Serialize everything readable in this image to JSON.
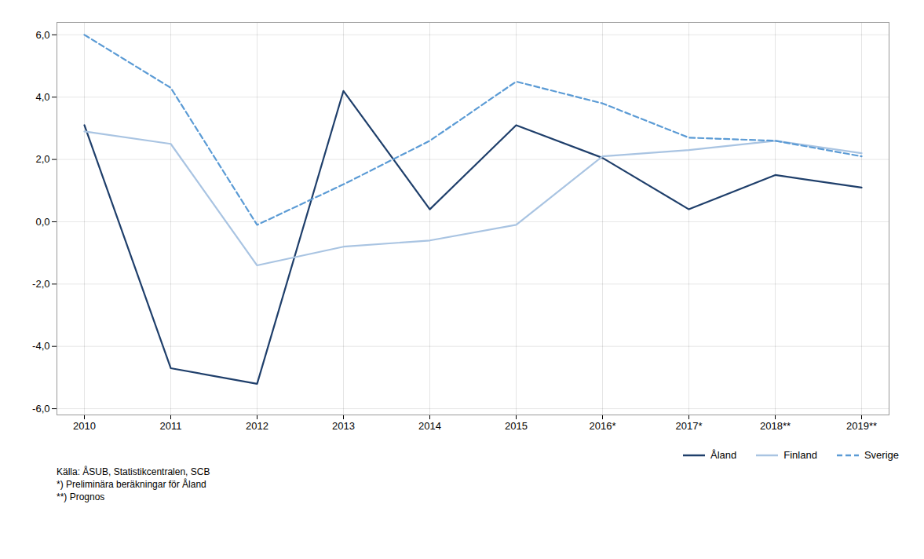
{
  "chart_data": {
    "type": "line",
    "categories": [
      "2010",
      "2011",
      "2012",
      "2013",
      "2014",
      "2015",
      "2016*",
      "2017*",
      "2018**",
      "2019**"
    ],
    "series": [
      {
        "name": "Åland",
        "color": "#1F3F6B",
        "line_style": "solid",
        "values": [
          3.1,
          -4.7,
          -5.2,
          4.2,
          0.4,
          3.1,
          2.05,
          0.4,
          1.5,
          1.1
        ]
      },
      {
        "name": "Finland",
        "color": "#A9C4E2",
        "line_style": "solid",
        "values": [
          2.9,
          2.5,
          -1.4,
          -0.8,
          -0.6,
          -0.1,
          2.1,
          2.3,
          2.6,
          2.2
        ]
      },
      {
        "name": "Sverige",
        "color": "#5B9BD5",
        "line_style": "dashed",
        "values": [
          6.0,
          4.3,
          -0.1,
          1.2,
          2.6,
          4.5,
          3.8,
          2.7,
          2.6,
          2.1
        ]
      }
    ],
    "ylim": [
      -6.2,
      6.4
    ],
    "yticks": [
      {
        "value": -6.0,
        "label": "-6,0"
      },
      {
        "value": -4.0,
        "label": "-4,0"
      },
      {
        "value": -2.0,
        "label": "-2,0"
      },
      {
        "value": 0.0,
        "label": "0,0"
      },
      {
        "value": 2.0,
        "label": "2,0"
      },
      {
        "value": 4.0,
        "label": "4,0"
      },
      {
        "value": 6.0,
        "label": "6,0"
      }
    ],
    "grid": true,
    "legend": "lower right",
    "annotations": [
      "Källa: ÅSUB, Statistikcentralen, SCB",
      "*) Preliminära beräkningar för Åland",
      "**) Prognos"
    ]
  }
}
